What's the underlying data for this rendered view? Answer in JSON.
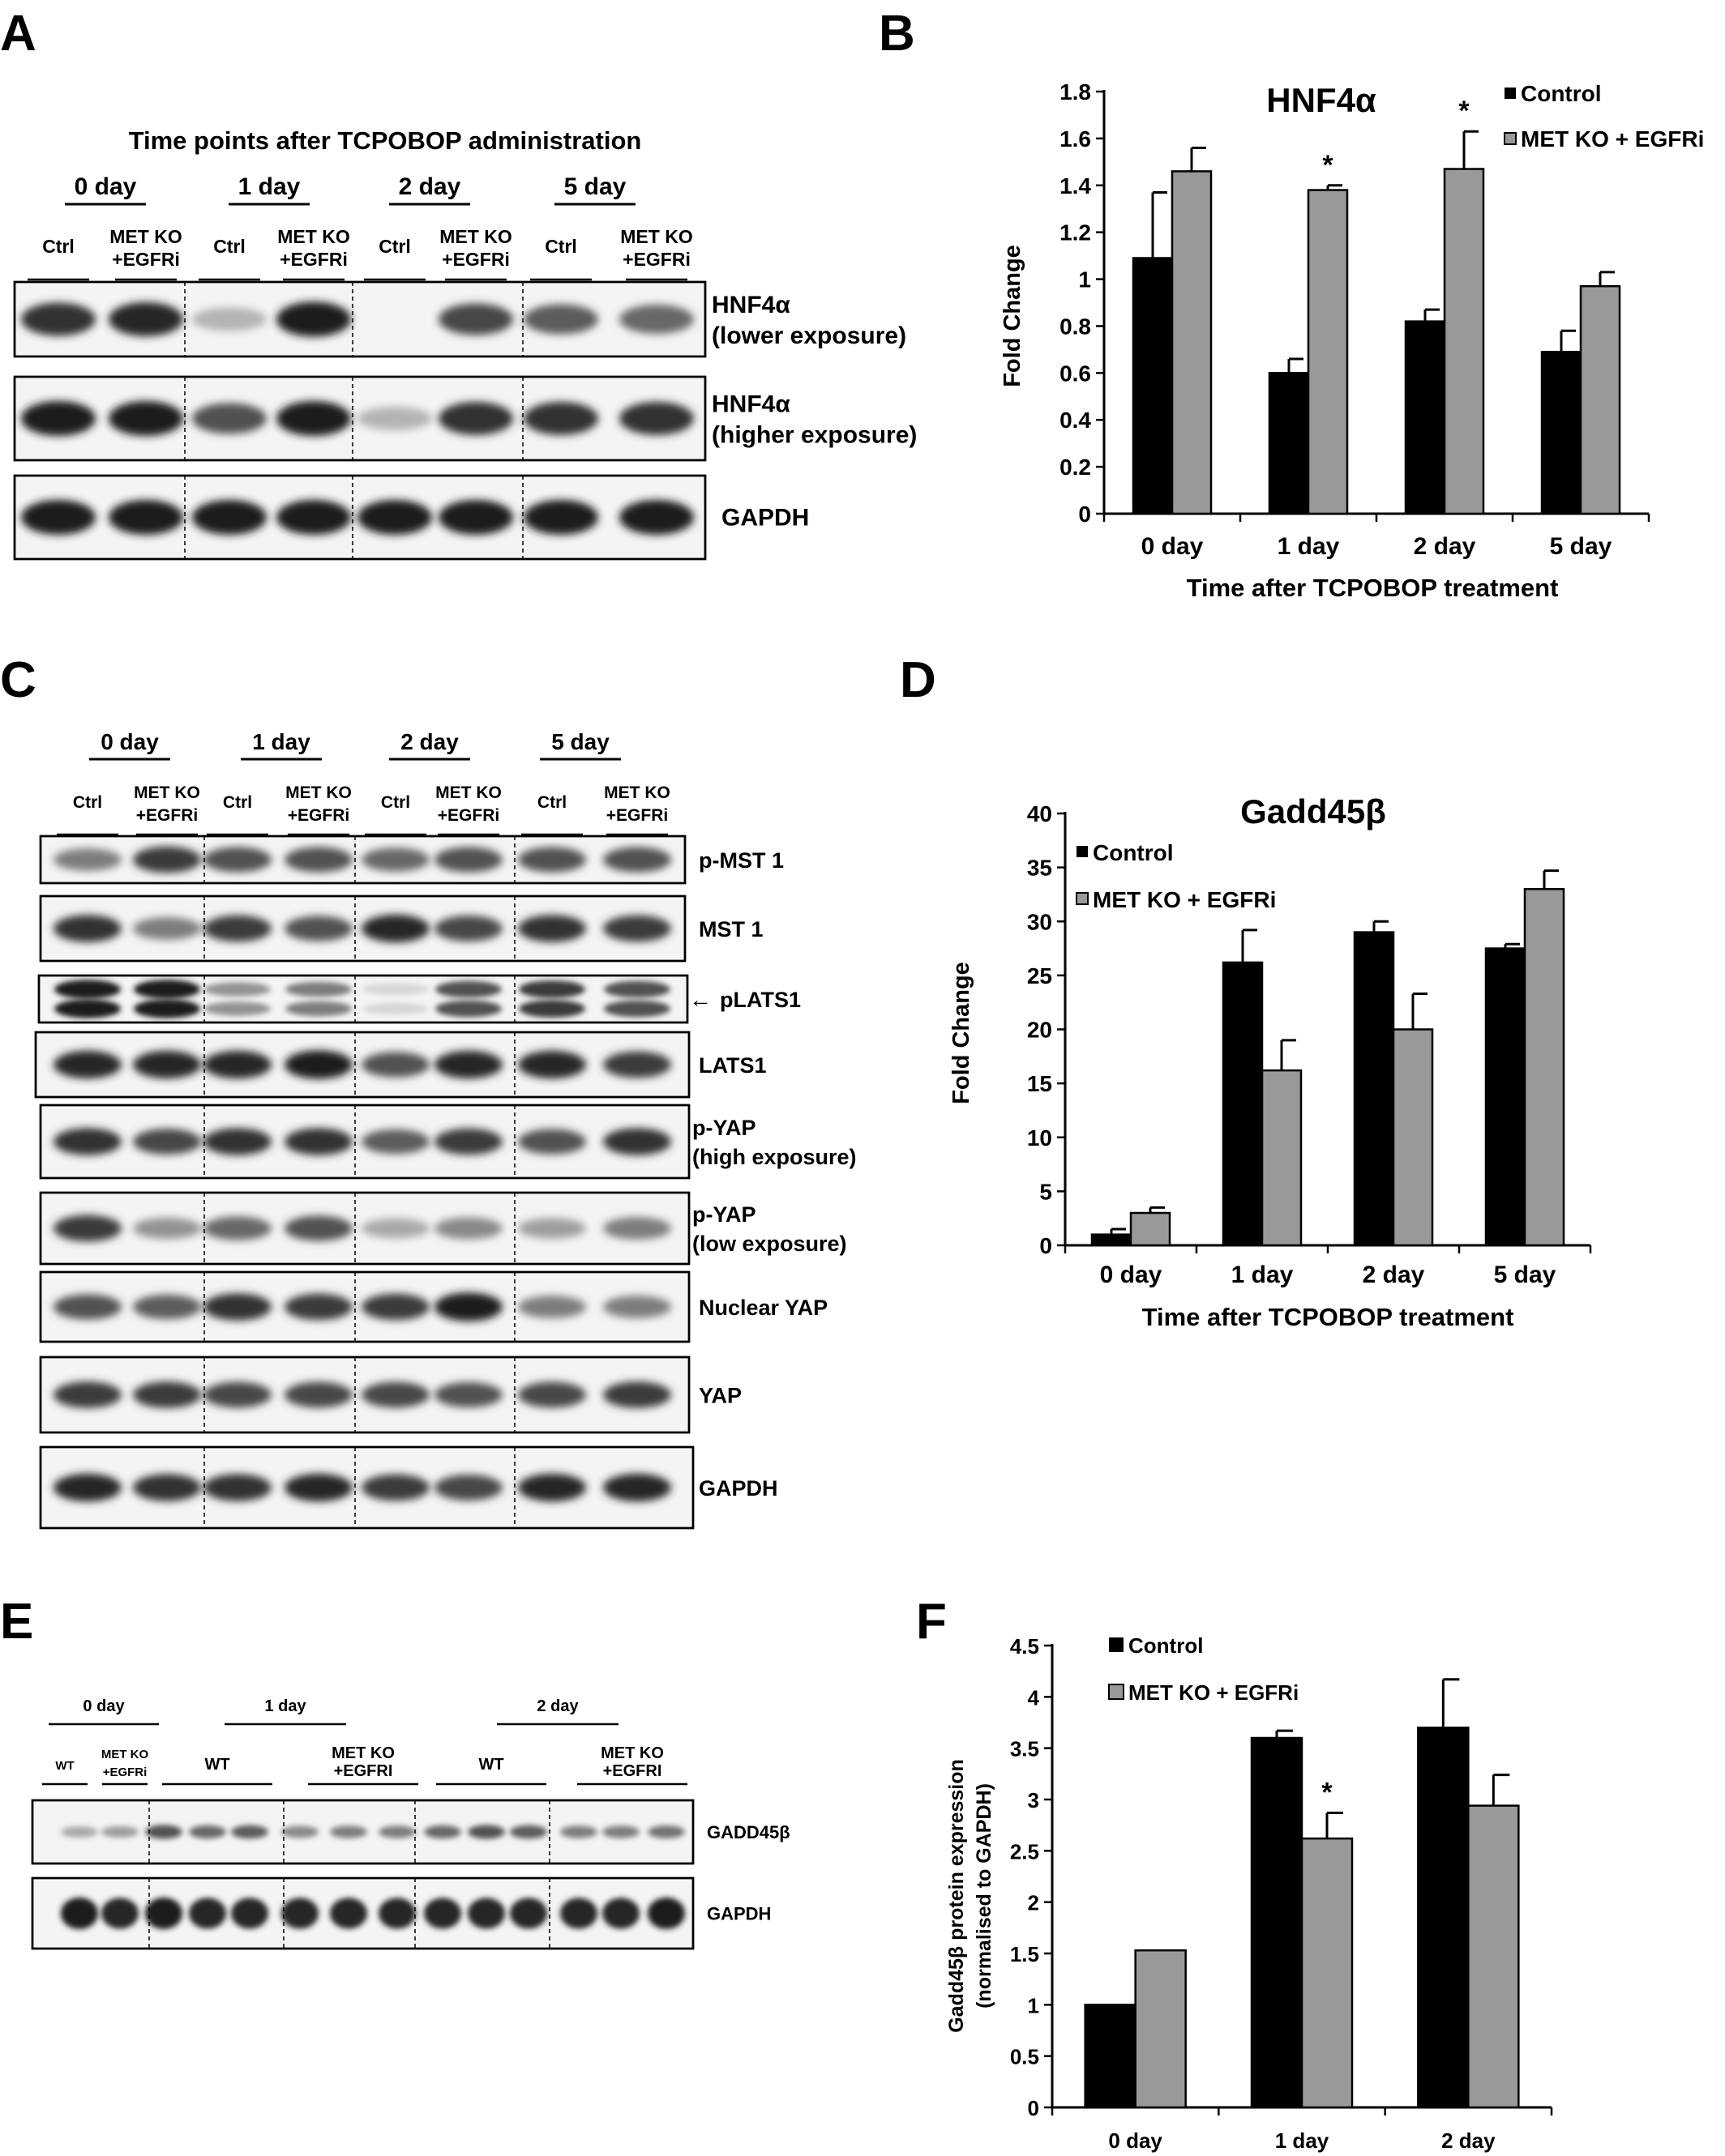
{
  "panel_letters": [
    "A",
    "B",
    "C",
    "D",
    "E",
    "F"
  ],
  "blot_A": {
    "heading": "Time points after TCPOBOP administration",
    "groups": [
      "0 day",
      "1 day",
      "2 day",
      "5 day"
    ],
    "lane_ctrl": "Ctrl",
    "lane_ko_1": "MET KO",
    "lane_ko_2": "+EGFRi",
    "rows": [
      {
        "label_1": "HNF4α",
        "label_2": "(lower exposure)",
        "intensity": [
          0.85,
          0.9,
          0.25,
          0.95,
          0.0,
          0.75,
          0.65,
          0.6
        ]
      },
      {
        "label_1": "HNF4α",
        "label_2": "(higher exposure)",
        "intensity": [
          0.95,
          0.95,
          0.7,
          0.95,
          0.25,
          0.85,
          0.85,
          0.85
        ]
      },
      {
        "label_1": "GAPDH",
        "label_2": "",
        "intensity": [
          0.95,
          0.95,
          0.95,
          0.95,
          0.95,
          0.95,
          0.95,
          0.95
        ]
      }
    ]
  },
  "blot_C": {
    "groups": [
      "0 day",
      "1 day",
      "2 day",
      "5 day"
    ],
    "lane_ctrl": "Ctrl",
    "lane_ko_1": "MET KO",
    "lane_ko_2": "+EGFRi",
    "rows": [
      {
        "label_1": "p-MST 1",
        "label_2": "",
        "intensity": [
          0.5,
          0.8,
          0.7,
          0.7,
          0.6,
          0.7,
          0.7,
          0.7
        ]
      },
      {
        "label_1": "MST 1",
        "label_2": "",
        "intensity": [
          0.85,
          0.5,
          0.8,
          0.7,
          0.9,
          0.75,
          0.85,
          0.8
        ]
      },
      {
        "label_1": "pLATS1",
        "label_2": "",
        "intensity": [
          0.95,
          0.95,
          0.4,
          0.5,
          0.1,
          0.7,
          0.8,
          0.7
        ]
      },
      {
        "label_1": "LATS1",
        "label_2": "",
        "intensity": [
          0.9,
          0.9,
          0.9,
          0.95,
          0.7,
          0.9,
          0.9,
          0.8
        ]
      },
      {
        "label_1": "p-YAP",
        "label_2": "(high exposure)",
        "intensity": [
          0.85,
          0.75,
          0.85,
          0.85,
          0.65,
          0.8,
          0.7,
          0.85
        ]
      },
      {
        "label_1": "p-YAP",
        "label_2": "(low exposure)",
        "intensity": [
          0.8,
          0.4,
          0.6,
          0.7,
          0.3,
          0.45,
          0.35,
          0.5
        ]
      },
      {
        "label_1": "Nuclear YAP",
        "label_2": "",
        "intensity": [
          0.7,
          0.65,
          0.85,
          0.8,
          0.8,
          0.95,
          0.5,
          0.5
        ]
      },
      {
        "label_1": "YAP",
        "label_2": "",
        "intensity": [
          0.8,
          0.8,
          0.75,
          0.75,
          0.75,
          0.7,
          0.75,
          0.8
        ]
      },
      {
        "label_1": "GAPDH",
        "label_2": "",
        "intensity": [
          0.9,
          0.85,
          0.85,
          0.9,
          0.8,
          0.75,
          0.9,
          0.9
        ]
      }
    ],
    "arrow": "←"
  },
  "blot_E": {
    "groups": [
      {
        "label": "0 day",
        "subs": [
          {
            "l1": "WT",
            "l2": ""
          },
          {
            "l1": "MET KO",
            "l2": "+EGFRi"
          }
        ]
      },
      {
        "label": "1 day",
        "subs": [
          {
            "l1": "WT",
            "l2": ""
          },
          {
            "l1": "MET KO",
            "l2": "+EGFRI"
          }
        ]
      },
      {
        "label": "2 day",
        "subs": [
          {
            "l1": "WT",
            "l2": ""
          },
          {
            "l1": "MET KO",
            "l2": "+EGFRI"
          }
        ]
      }
    ],
    "rows": [
      {
        "label": "GADD45β",
        "intensity": [
          0.3,
          0.35,
          0.7,
          0.6,
          0.65,
          0.45,
          0.5,
          0.5,
          0.6,
          0.7,
          0.65,
          0.5,
          0.5,
          0.55
        ]
      },
      {
        "label": "GAPDH",
        "intensity": [
          0.95,
          0.9,
          0.95,
          0.9,
          0.9,
          0.9,
          0.9,
          0.9,
          0.9,
          0.9,
          0.9,
          0.9,
          0.9,
          0.95
        ]
      }
    ]
  },
  "chart_data": [
    {
      "type": "bar",
      "panel": "B",
      "title": "HNF4α",
      "xlabel": "Time after TCPOBOP treatment",
      "ylabel": "Fold Change",
      "categories": [
        "0 day",
        "1 day",
        "2 day",
        "5 day"
      ],
      "ylim": [
        0,
        1.8
      ],
      "yticks": [
        "0",
        "0.2",
        "0.4",
        "0.6",
        "0.8",
        "1",
        "1.2",
        "1.4",
        "1.6",
        "1.8"
      ],
      "grid": false,
      "legend_position": "top-right",
      "series": [
        {
          "name": "Control",
          "color": "#000000",
          "values": [
            1.09,
            0.6,
            0.82,
            0.69
          ],
          "errors": [
            0.28,
            0.06,
            0.05,
            0.09
          ]
        },
        {
          "name": "MET KO + EGFRi",
          "color": "#999999",
          "values": [
            1.46,
            1.38,
            1.47,
            0.97
          ],
          "errors": [
            0.1,
            0.02,
            0.16,
            0.06
          ]
        }
      ],
      "annotations": [
        {
          "category": 1,
          "series": 1,
          "text": "*"
        },
        {
          "category": 2,
          "series": 1,
          "text": "*"
        }
      ]
    },
    {
      "type": "bar",
      "panel": "D",
      "title": "Gadd45β",
      "xlabel": "Time after TCPOBOP treatment",
      "ylabel": "Fold Change",
      "categories": [
        "0 day",
        "1 day",
        "2 day",
        "5 day"
      ],
      "ylim": [
        0,
        40
      ],
      "yticks": [
        "0",
        "5",
        "10",
        "15",
        "20",
        "25",
        "30",
        "35",
        "40"
      ],
      "grid": false,
      "legend_position": "top-left",
      "series": [
        {
          "name": "Control",
          "color": "#000000",
          "values": [
            1.0,
            26.2,
            29.0,
            27.5
          ],
          "errors": [
            0.5,
            3.0,
            1.0,
            0.4
          ]
        },
        {
          "name": "MET KO + EGFRi",
          "color": "#999999",
          "values": [
            3.0,
            16.2,
            20.0,
            33.0
          ],
          "errors": [
            0.5,
            2.8,
            3.3,
            1.7
          ]
        }
      ],
      "annotations": []
    },
    {
      "type": "bar",
      "panel": "F",
      "title": "",
      "xlabel": "",
      "ylabel_1": "Gadd45β protein expression",
      "ylabel_2": "(normalised to GAPDH)",
      "categories": [
        "0 day",
        "1 day",
        "2 day"
      ],
      "ylim": [
        0,
        4.5
      ],
      "yticks": [
        "0",
        "0.5",
        "1",
        "1.5",
        "2",
        "2.5",
        "3",
        "3.5",
        "4",
        "4.5"
      ],
      "grid": false,
      "legend_position": "top-left",
      "series": [
        {
          "name": "Control",
          "color": "#000000",
          "values": [
            1.0,
            3.6,
            3.7
          ],
          "errors": [
            0,
            0.07,
            0.47
          ]
        },
        {
          "name": "MET KO + EGFRi",
          "color": "#999999",
          "values": [
            1.53,
            2.62,
            2.94
          ],
          "errors": [
            0,
            0.25,
            0.3
          ]
        }
      ],
      "annotations": [
        {
          "category": 1,
          "series": 1,
          "text": "*"
        }
      ]
    }
  ]
}
